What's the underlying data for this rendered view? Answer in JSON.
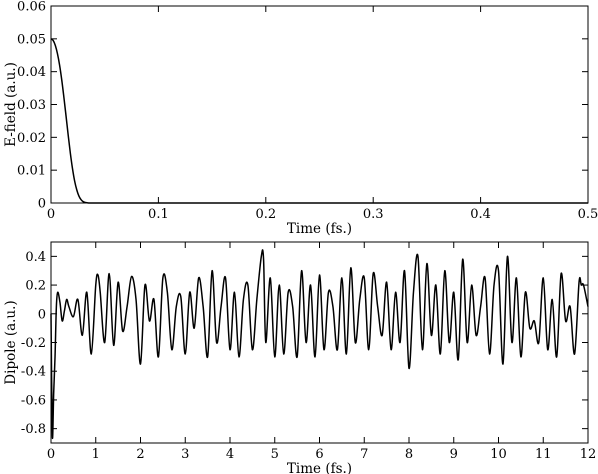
{
  "chart_data": [
    {
      "type": "line",
      "xlabel": "Time (fs.)",
      "ylabel": "E-field (a.u.)",
      "xlim": [
        0,
        0.5
      ],
      "ylim": [
        0,
        0.06
      ],
      "xticks": [
        0,
        0.1,
        0.2,
        0.3,
        0.4,
        0.5
      ],
      "xtick_labels": [
        "0",
        "0.1",
        "0.2",
        "0.3",
        "0.4",
        "0.5"
      ],
      "yticks": [
        0,
        0.01,
        0.02,
        0.03,
        0.04,
        0.05,
        0.06
      ],
      "ytick_labels": [
        "0",
        "0.01",
        "0.02",
        "0.03",
        "0.04",
        "0.05",
        "0.06"
      ],
      "grid": false,
      "series": [
        {
          "x": [
            0,
            0.002,
            0.004,
            0.006,
            0.008,
            0.01,
            0.012,
            0.014,
            0.016,
            0.018,
            0.02,
            0.022,
            0.024,
            0.026,
            0.028,
            0.03,
            0.032,
            0.034,
            0.036,
            0.04,
            0.05,
            0.1,
            0.2,
            0.3,
            0.4,
            0.5
          ],
          "y": [
            0.05,
            0.0495,
            0.048,
            0.0455,
            0.042,
            0.0375,
            0.0322,
            0.0265,
            0.0207,
            0.0152,
            0.0105,
            0.0067,
            0.004,
            0.0021,
            0.001,
            0.0004,
            0.00015,
            5e-05,
            0,
            0,
            0,
            0,
            0,
            0,
            0,
            0
          ]
        }
      ]
    },
    {
      "type": "line",
      "xlabel": "Time (fs.)",
      "ylabel": "Dipole (a.u.)",
      "xlim": [
        0,
        12
      ],
      "ylim": [
        -0.9,
        0.5
      ],
      "xticks": [
        0,
        1,
        2,
        3,
        4,
        5,
        6,
        7,
        8,
        9,
        10,
        11,
        12
      ],
      "xtick_labels": [
        "0",
        "1",
        "2",
        "3",
        "4",
        "5",
        "6",
        "7",
        "8",
        "9",
        "10",
        "11",
        "12"
      ],
      "yticks": [
        -0.8,
        -0.6,
        -0.4,
        -0.2,
        0,
        0.2,
        0.4
      ],
      "ytick_labels": [
        "-0.8",
        "-0.6",
        "-0.4",
        "-0.2",
        "0",
        "0.2",
        "0.4"
      ],
      "grid": false,
      "series": [
        {
          "x": [
            0,
            0.03,
            0.06,
            0.09,
            0.12,
            0.15,
            0.2,
            0.25,
            0.3,
            0.35,
            0.4,
            0.5,
            0.6,
            0.7,
            0.8,
            0.9,
            1.0,
            1.05,
            1.1,
            1.2,
            1.3,
            1.4,
            1.5,
            1.6,
            1.7,
            1.8,
            1.9,
            2.0,
            2.1,
            2.2,
            2.3,
            2.4,
            2.5,
            2.6,
            2.7,
            2.8,
            2.9,
            3.0,
            3.1,
            3.2,
            3.3,
            3.4,
            3.5,
            3.6,
            3.7,
            3.8,
            3.9,
            4.0,
            4.1,
            4.2,
            4.3,
            4.4,
            4.5,
            4.6,
            4.7,
            4.75,
            4.8,
            4.9,
            5.0,
            5.1,
            5.2,
            5.3,
            5.4,
            5.5,
            5.6,
            5.7,
            5.8,
            5.9,
            6.0,
            6.1,
            6.2,
            6.3,
            6.4,
            6.5,
            6.6,
            6.7,
            6.8,
            6.9,
            7.0,
            7.1,
            7.2,
            7.3,
            7.4,
            7.5,
            7.6,
            7.7,
            7.8,
            7.9,
            8.0,
            8.1,
            8.2,
            8.3,
            8.4,
            8.5,
            8.6,
            8.7,
            8.8,
            8.9,
            9.0,
            9.1,
            9.2,
            9.3,
            9.4,
            9.5,
            9.6,
            9.7,
            9.8,
            9.9,
            10.0,
            10.1,
            10.2,
            10.3,
            10.4,
            10.5,
            10.6,
            10.7,
            10.8,
            10.9,
            11.0,
            11.1,
            11.2,
            11.3,
            11.4,
            11.5,
            11.6,
            11.7,
            11.8,
            11.85,
            11.9,
            12.0
          ],
          "y": [
            0,
            -0.85,
            -0.55,
            -0.3,
            0.05,
            0.15,
            0.08,
            -0.05,
            0.02,
            0.1,
            0.05,
            -0.02,
            0.1,
            -0.15,
            0.15,
            -0.28,
            0.2,
            0.27,
            0.15,
            -0.2,
            0.28,
            -0.22,
            0.22,
            -0.12,
            0.05,
            0.26,
            0.1,
            -0.35,
            0.2,
            -0.05,
            0.1,
            -0.3,
            0.25,
            0.15,
            -0.25,
            0.05,
            0.12,
            -0.28,
            0.15,
            -0.1,
            0.25,
            0.05,
            -0.3,
            0.3,
            -0.2,
            0.05,
            0.25,
            -0.25,
            0.15,
            -0.3,
            0.1,
            0.2,
            -0.25,
            0.1,
            0.4,
            0.38,
            -0.2,
            0.25,
            -0.3,
            0.2,
            -0.28,
            0.15,
            0.05,
            -0.3,
            0.3,
            -0.2,
            0.2,
            -0.3,
            0.27,
            -0.25,
            0.15,
            0.05,
            -0.25,
            0.25,
            -0.28,
            0.32,
            -0.2,
            0.1,
            0.25,
            -0.25,
            0.28,
            0.05,
            -0.15,
            0.22,
            -0.25,
            0.15,
            -0.2,
            0.3,
            -0.38,
            0.15,
            0.4,
            -0.25,
            0.35,
            -0.15,
            0.2,
            -0.28,
            0.3,
            -0.2,
            0.15,
            -0.32,
            0.38,
            -0.2,
            0.2,
            -0.15,
            0.05,
            0.25,
            -0.28,
            0.2,
            0.3,
            -0.35,
            0.4,
            -0.2,
            0.25,
            -0.3,
            0.15,
            -0.1,
            -0.05,
            -0.2,
            0.25,
            -0.25,
            0.1,
            -0.3,
            0.28,
            -0.05,
            0.05,
            -0.28,
            0.22,
            0.2,
            0.2,
            0.05
          ]
        }
      ]
    }
  ]
}
